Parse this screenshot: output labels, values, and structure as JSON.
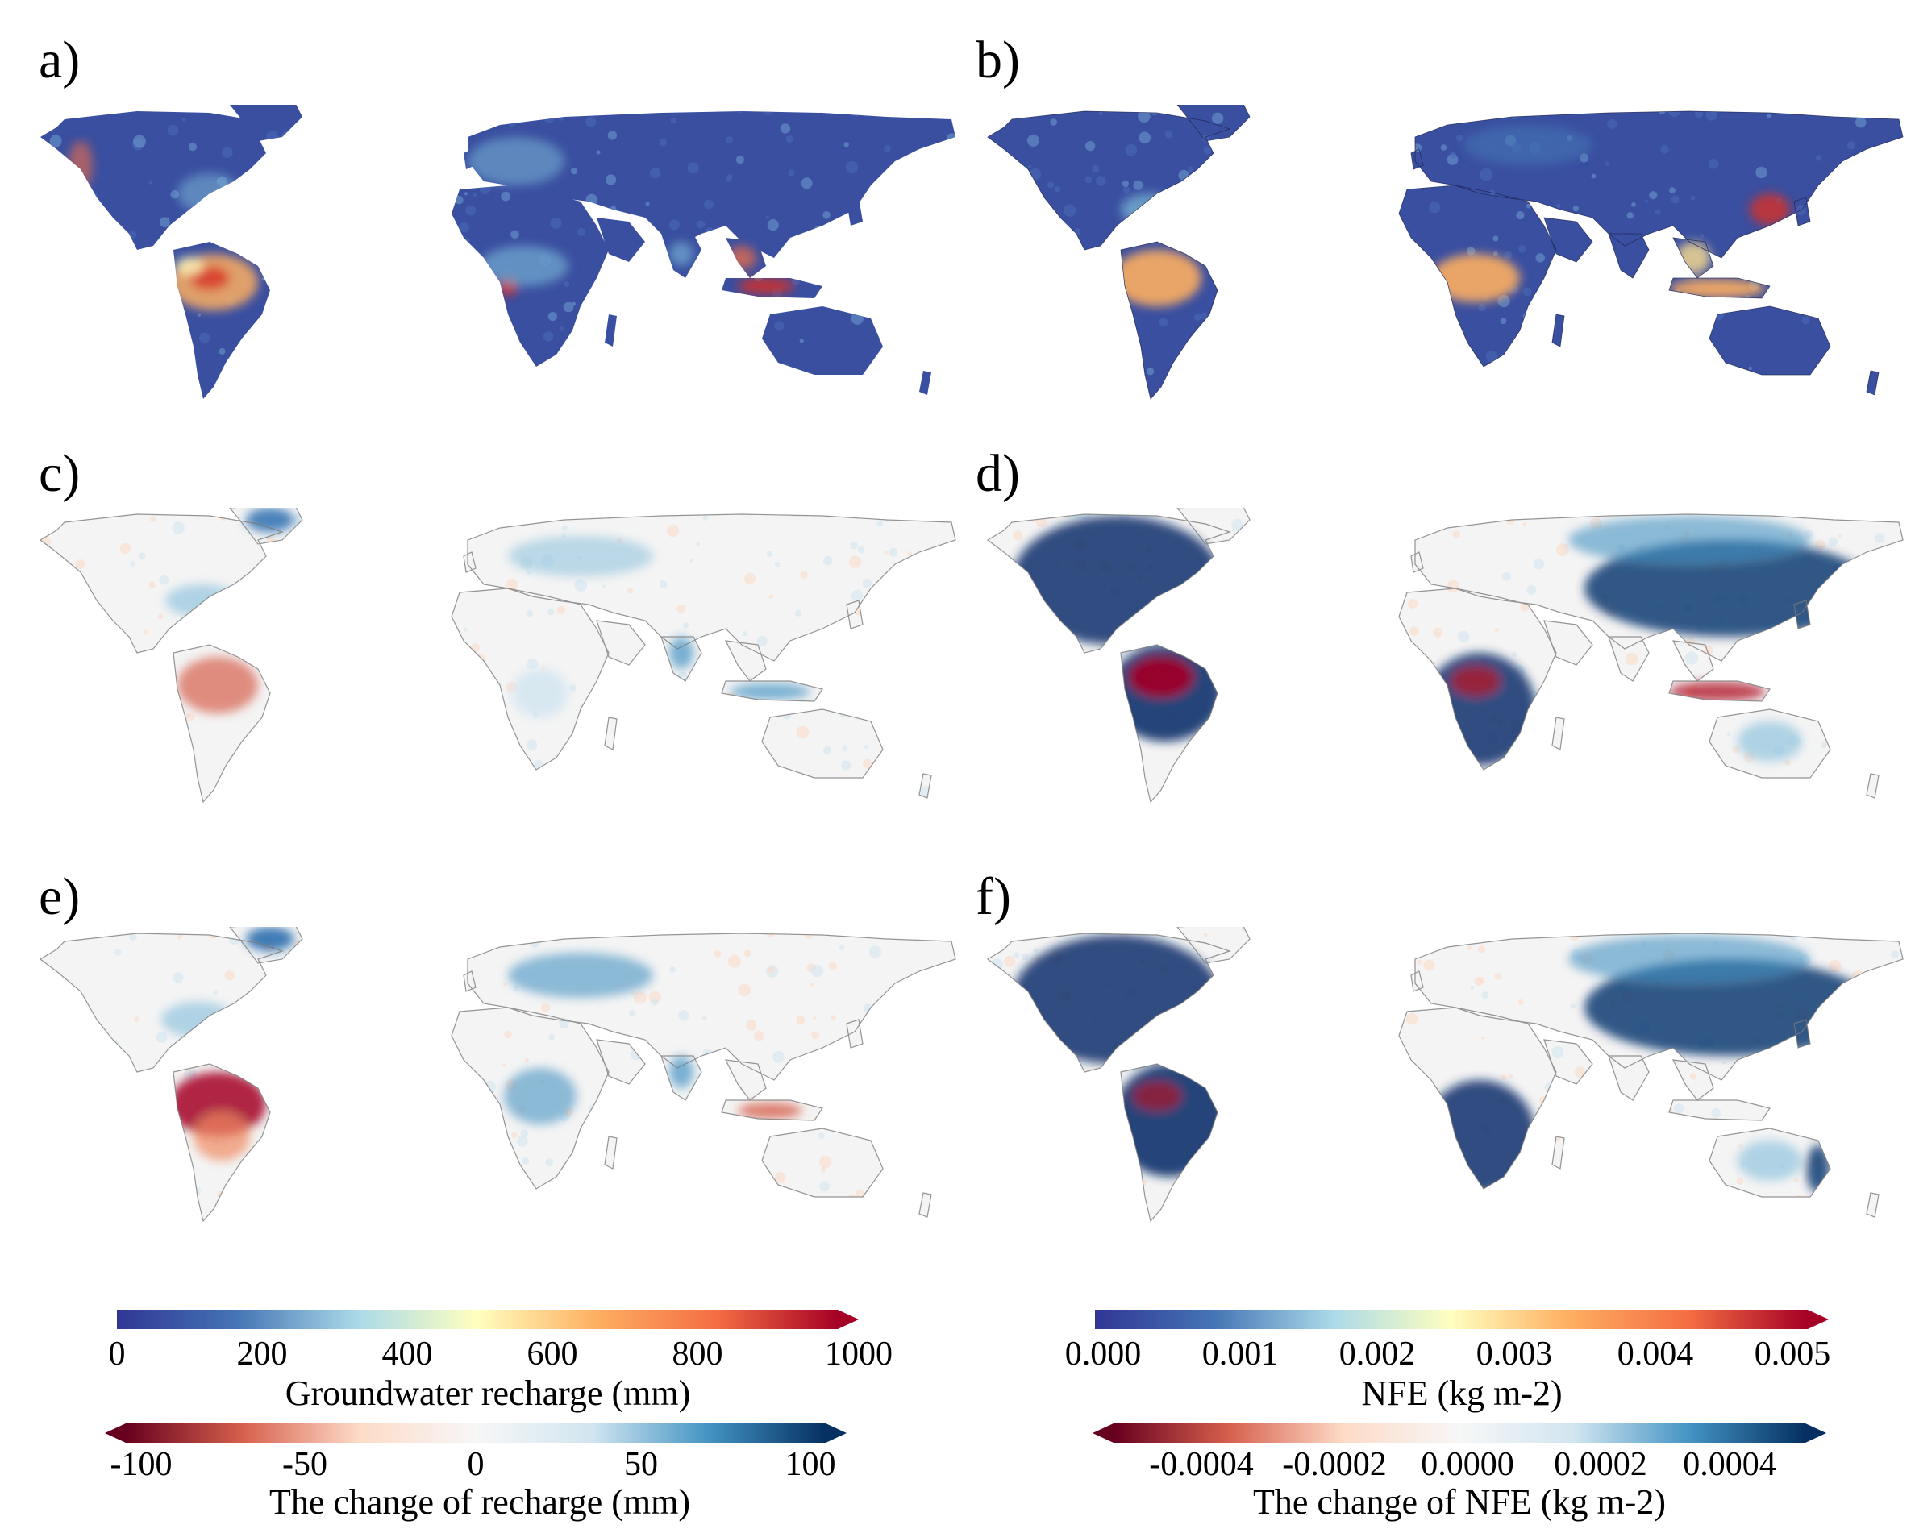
{
  "panels": [
    {
      "label": "a)",
      "style": "recharge"
    },
    {
      "label": "b)",
      "style": "nfe"
    },
    {
      "label": "c)",
      "style": "recharge_change_c"
    },
    {
      "label": "d)",
      "style": "nfe_change_d"
    },
    {
      "label": "e)",
      "style": "recharge_change_e"
    },
    {
      "label": "f)",
      "style": "nfe_change_f"
    }
  ],
  "colorbars": {
    "recharge": {
      "title": "Groundwater recharge (mm)",
      "ticks": [
        "0",
        "200",
        "400",
        "600",
        "800",
        "1000"
      ],
      "range": [
        0,
        1000
      ],
      "extend": "max",
      "colors": [
        "#313695",
        "#4575b4",
        "#abd9e9",
        "#ffffbf",
        "#fdae61",
        "#f46d43",
        "#a50026"
      ]
    },
    "nfe": {
      "title": "NFE (kg m-2)",
      "ticks": [
        "0.000",
        "0.001",
        "0.002",
        "0.003",
        "0.004",
        "0.005"
      ],
      "range": [
        0,
        0.005
      ],
      "extend": "max",
      "colors": [
        "#313695",
        "#4575b4",
        "#abd9e9",
        "#ffffbf",
        "#fdae61",
        "#f46d43",
        "#a50026"
      ]
    },
    "recharge_change": {
      "title": "The change of recharge (mm)",
      "ticks": [
        "-100",
        "-50",
        "0",
        "50",
        "100"
      ],
      "range": [
        -100,
        100
      ],
      "extend": "both",
      "colors": [
        "#67001f",
        "#d6604d",
        "#fddbc7",
        "#f7f7f7",
        "#d1e5f0",
        "#4393c3",
        "#053061"
      ]
    },
    "nfe_change": {
      "title": "The change of NFE (kg m-2)",
      "ticks": [
        "-0.0004",
        "-0.0002",
        "0.0000",
        "0.0002",
        "0.0004"
      ],
      "range": [
        -0.0005,
        0.0005
      ],
      "extend": "both",
      "colors": [
        "#67001f",
        "#d6604d",
        "#fddbc7",
        "#f7f7f7",
        "#d1e5f0",
        "#4393c3",
        "#053061"
      ]
    }
  }
}
